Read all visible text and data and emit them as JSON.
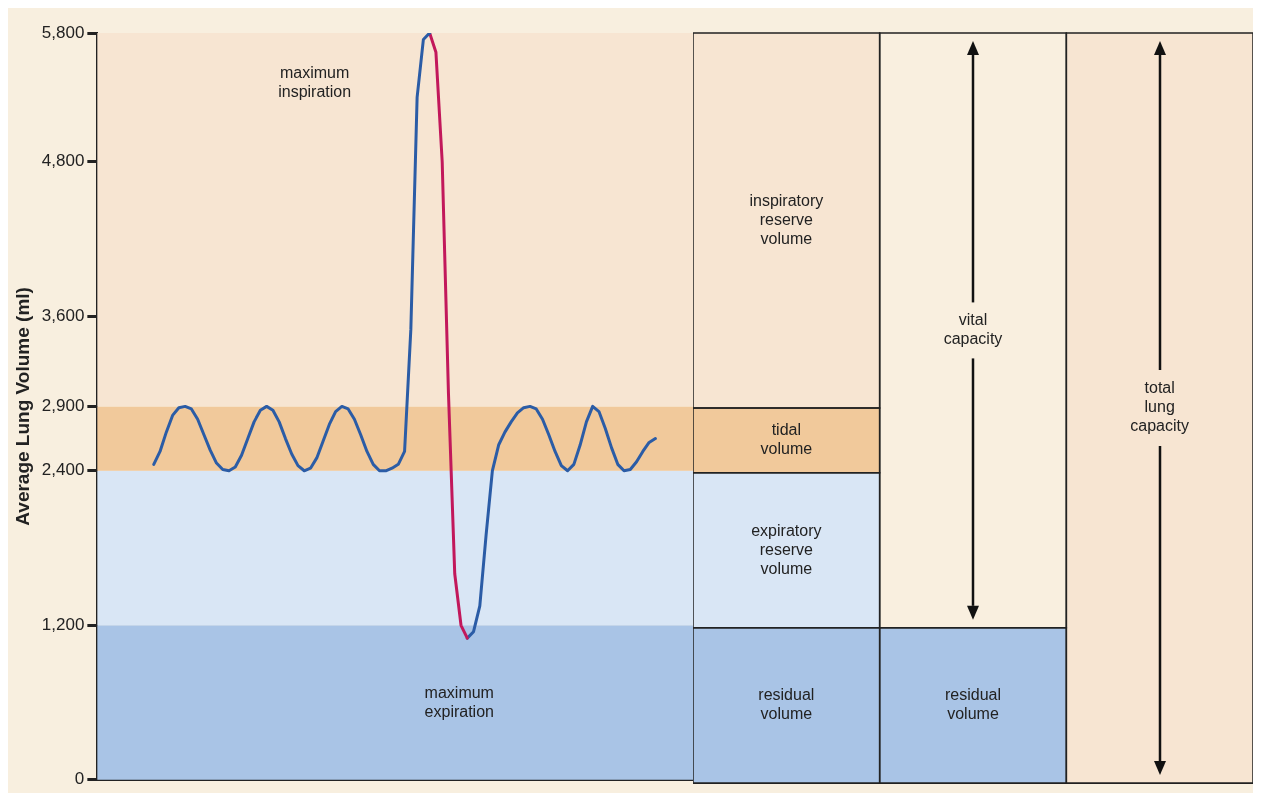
{
  "chart_data": [
    {
      "type": "line",
      "ylabel": "Average Lung Volume (ml)",
      "ylim": [
        0,
        5800
      ],
      "yticks": [
        0,
        {
          "value": 1200,
          "label": "1,200"
        },
        {
          "value": 2400,
          "label": "2,400"
        },
        {
          "value": 2900,
          "label": "2,900"
        },
        {
          "value": 3600,
          "label": "3,600"
        },
        {
          "value": 4800,
          "label": "4,800"
        },
        {
          "value": 5800,
          "label": "5,800"
        }
      ],
      "tick_labels": "y",
      "grid": false,
      "legend": false,
      "marker": "none",
      "line_style": "solid",
      "categories": [
        null,
        null,
        null,
        null,
        null,
        null,
        null,
        null,
        null,
        null,
        null,
        null,
        null,
        null,
        null,
        null,
        null,
        null,
        null,
        null,
        null,
        null,
        null,
        null,
        null,
        null,
        null,
        null,
        null,
        null,
        null,
        null,
        null,
        null,
        null,
        null,
        null,
        null,
        null,
        null,
        null,
        null,
        null,
        null,
        null,
        null,
        null,
        null,
        null,
        null,
        null,
        null,
        null,
        null,
        null,
        null,
        null,
        null,
        null,
        null,
        null,
        null,
        null,
        null,
        null,
        null,
        null,
        null,
        null,
        null,
        null,
        null,
        null,
        null,
        null,
        null,
        null,
        null,
        null,
        null,
        null,
        null,
        null,
        null,
        null,
        null,
        null,
        null,
        null,
        null,
        null,
        null,
        null,
        null,
        null,
        null
      ],
      "series": [
        {
          "color": "#2b5ca6",
          "values": [
            null,
            null,
            null,
            null,
            null,
            null,
            null,
            null,
            null,
            2450,
            2550,
            2700,
            2830,
            2890,
            2900,
            2880,
            2800,
            2680,
            2560,
            2460,
            2410,
            2400,
            2430,
            2520,
            2650,
            2780,
            2870,
            2900,
            2870,
            2780,
            2650,
            2530,
            2440,
            2400,
            2420,
            2500,
            2630,
            2760,
            2860,
            2900,
            2880,
            2800,
            2680,
            2550,
            2450,
            2400,
            2400,
            2420,
            2450,
            2550,
            3500,
            5300,
            5750,
            5800,
            null,
            null,
            null,
            null,
            null,
            null,
            null,
            null,
            null,
            null,
            null,
            null,
            null,
            null,
            null,
            null,
            null,
            null,
            null,
            null,
            null,
            null,
            null,
            null,
            null,
            null,
            null,
            null,
            null,
            null,
            null,
            null,
            null,
            null,
            null,
            null,
            null,
            null,
            null,
            null,
            null,
            null
          ]
        },
        {
          "color": "#c2185b",
          "values": [
            null,
            null,
            null,
            null,
            null,
            null,
            null,
            null,
            null,
            null,
            null,
            null,
            null,
            null,
            null,
            null,
            null,
            null,
            null,
            null,
            null,
            null,
            null,
            null,
            null,
            null,
            null,
            null,
            null,
            null,
            null,
            null,
            null,
            null,
            null,
            null,
            null,
            null,
            null,
            null,
            null,
            null,
            null,
            null,
            null,
            null,
            null,
            null,
            null,
            null,
            null,
            null,
            null,
            5800,
            5650,
            4800,
            3000,
            1600,
            1200,
            1100,
            null,
            null,
            null,
            null,
            null,
            null,
            null,
            null,
            null,
            null,
            null,
            null,
            null,
            null,
            null,
            null,
            null,
            null,
            null,
            null,
            null,
            null,
            null,
            null,
            null,
            null,
            null,
            null,
            null,
            null,
            null,
            null,
            null,
            null,
            null,
            null
          ]
        },
        {
          "color": "#2b5ca6",
          "values": [
            null,
            null,
            null,
            null,
            null,
            null,
            null,
            null,
            null,
            null,
            null,
            null,
            null,
            null,
            null,
            null,
            null,
            null,
            null,
            null,
            null,
            null,
            null,
            null,
            null,
            null,
            null,
            null,
            null,
            null,
            null,
            null,
            null,
            null,
            null,
            null,
            null,
            null,
            null,
            null,
            null,
            null,
            null,
            null,
            null,
            null,
            null,
            null,
            null,
            null,
            null,
            null,
            null,
            null,
            null,
            null,
            null,
            null,
            null,
            1100,
            1150,
            1350,
            1900,
            2400,
            2600,
            2700,
            2780,
            2850,
            2890,
            2900,
            2880,
            2800,
            2680,
            2550,
            2440,
            2400,
            2450,
            2600,
            2780,
            2900,
            2860,
            2730,
            2580,
            2450,
            2400,
            2410,
            2470,
            2550,
            2620,
            2650,
            null,
            null,
            null,
            null,
            null,
            null
          ]
        }
      ],
      "bands": [
        {
          "axis": "y",
          "from": 0,
          "to": 1200,
          "color": "#a9c4e6"
        },
        {
          "axis": "y",
          "from": 1200,
          "to": 2400,
          "color": "#d9e6f5"
        },
        {
          "axis": "y",
          "from": 2400,
          "to": 2900,
          "color": "#f1c99b"
        },
        {
          "axis": "y",
          "from": 2900,
          "to": 5800,
          "color": "#f7e5d2"
        }
      ],
      "annotations": [
        "maximum inspiration",
        "maximum expiration"
      ]
    },
    {
      "type": "bar",
      "stacked": true,
      "ylim": [
        0,
        5800
      ],
      "tick_labels": false,
      "grid": false,
      "legend": false,
      "categories": [
        null,
        null,
        null
      ],
      "series": [
        {
          "colors": [
            "#a9c4e6",
            "#a9c4e6",
            null
          ],
          "values": [
            1200,
            1200,
            null
          ],
          "value_labels": [
            "residual volume",
            "residual volume",
            null
          ]
        },
        {
          "colors": [
            "#d9e6f5",
            "#f9efdf",
            null
          ],
          "values": [
            1200,
            4600,
            null
          ],
          "value_labels": [
            "expiratory reserve volume",
            "vital capacity",
            null
          ]
        },
        {
          "colors": [
            "#f1c99b",
            null,
            null
          ],
          "values": [
            500,
            null,
            null
          ],
          "value_labels": [
            "tidal volume",
            null,
            null
          ]
        },
        {
          "colors": [
            "#f7e5d2",
            null,
            null
          ],
          "values": [
            2900,
            null,
            null
          ],
          "value_labels": [
            "inspiratory reserve volume",
            null,
            null
          ]
        },
        {
          "colors": [
            null,
            null,
            "#f7e5d2"
          ],
          "values": [
            null,
            null,
            5800
          ],
          "value_labels": [
            null,
            null,
            "total lung capacity"
          ]
        }
      ]
    }
  ]
}
